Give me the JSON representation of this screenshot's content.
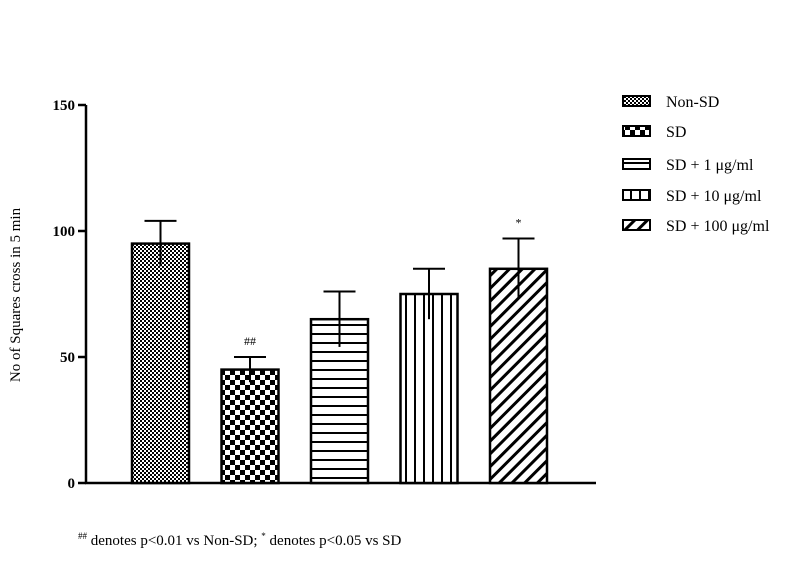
{
  "chart_data": {
    "type": "bar",
    "ylabel": "No of Squares cross in 5 min",
    "ylim": [
      0,
      150
    ],
    "yticks": [
      "0",
      "50",
      "100",
      "150"
    ],
    "series": [
      {
        "name": "Non-SD",
        "value": 95,
        "error": 9,
        "annotation": "",
        "pattern": "dots"
      },
      {
        "name": "SD",
        "value": 45,
        "error": 5,
        "annotation": "##",
        "pattern": "checker"
      },
      {
        "name": "SD + 1 μg/ml",
        "value": 65,
        "error": 11,
        "annotation": "",
        "pattern": "horizontal"
      },
      {
        "name": "SD + 10 μg/ml",
        "value": 75,
        "error": 10,
        "annotation": "",
        "pattern": "vertical"
      },
      {
        "name": "SD + 100 μg/ml",
        "value": 85,
        "error": 12,
        "annotation": "*",
        "pattern": "diagonal"
      }
    ],
    "legend_position": "right",
    "grid": false
  },
  "footnote": {
    "mark1": "##",
    "text1": " denotes p<0.01 vs Non-SD; ",
    "mark2": "*",
    "text2": " denotes p<0.05 vs SD"
  }
}
